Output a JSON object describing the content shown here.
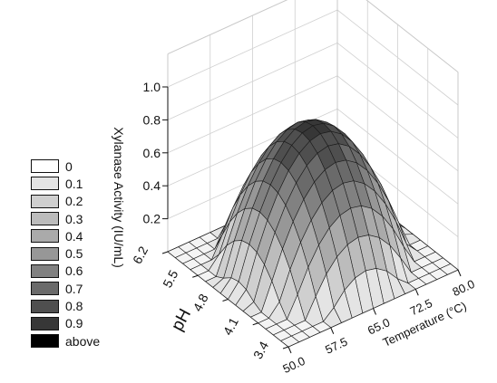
{
  "chart_data": {
    "type": "surface",
    "title": "",
    "zlabel": "Xylanase Activity (IU/mL)",
    "xlabel": "Temperature (°C)",
    "ylabel": "pH",
    "x_ticks": [
      "50.0",
      "57.5",
      "65.0",
      "72.5",
      "80.0"
    ],
    "y_ticks": [
      "3.4",
      "4.1",
      "4.8",
      "5.5",
      "6.2"
    ],
    "z_ticks": [
      "0.2",
      "0.4",
      "0.6",
      "0.8",
      "1.0"
    ],
    "xlim": [
      50.0,
      80.0
    ],
    "ylim": [
      3.4,
      6.2
    ],
    "zlim": [
      0,
      1.0
    ],
    "peak": {
      "temperature": 65.0,
      "pH": 4.8,
      "activity": 0.82
    },
    "legend": {
      "entries": [
        "0",
        "0.1",
        "0.2",
        "0.3",
        "0.4",
        "0.5",
        "0.6",
        "0.7",
        "0.8",
        "0.9",
        "above"
      ],
      "colors": [
        "#ffffff",
        "#e4e4e4",
        "#cfcfcf",
        "#bcbcbc",
        "#aaaaaa",
        "#979797",
        "#818181",
        "#6a6a6a",
        "#4f4f4f",
        "#373737",
        "#000000"
      ]
    }
  }
}
